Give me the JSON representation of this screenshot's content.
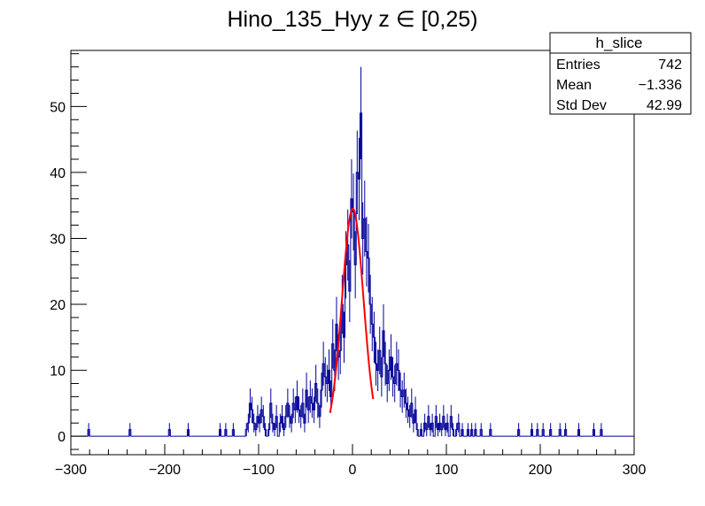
{
  "chart_data": {
    "type": "histogram",
    "title": "Hino_135_Hyy z  ∈ [0,25)",
    "xlabel": "",
    "ylabel": "",
    "xlim": [
      -300,
      300
    ],
    "ylim": [
      -2.8,
      58.5
    ],
    "x_ticks": [
      -300,
      -200,
      -100,
      0,
      100,
      200,
      300
    ],
    "x_tick_labels": [
      "−300",
      "−200",
      "−100",
      "0",
      "100",
      "200",
      "300"
    ],
    "y_ticks": [
      0,
      10,
      20,
      30,
      40,
      50
    ],
    "y_tick_labels": [
      "0",
      "10",
      "20",
      "30",
      "40",
      "50"
    ],
    "bin_width": 2,
    "bin_start": -300,
    "bins_nonzero": [
      [
        -282,
        1
      ],
      [
        -238,
        1
      ],
      [
        -196,
        1
      ],
      [
        -176,
        1
      ],
      [
        -142,
        1
      ],
      [
        -136,
        1
      ],
      [
        -128,
        1
      ],
      [
        -114,
        1
      ],
      [
        -112,
        2
      ],
      [
        -110,
        5
      ],
      [
        -108,
        4
      ],
      [
        -106,
        2
      ],
      [
        -104,
        1
      ],
      [
        -102,
        3
      ],
      [
        -100,
        2
      ],
      [
        -98,
        4
      ],
      [
        -96,
        3
      ],
      [
        -94,
        1
      ],
      [
        -92,
        0
      ],
      [
        -90,
        1
      ],
      [
        -88,
        5
      ],
      [
        -86,
        2
      ],
      [
        -84,
        1
      ],
      [
        -82,
        3
      ],
      [
        -80,
        0
      ],
      [
        -78,
        2
      ],
      [
        -76,
        3
      ],
      [
        -74,
        1
      ],
      [
        -72,
        3
      ],
      [
        -70,
        5
      ],
      [
        -68,
        3
      ],
      [
        -66,
        2
      ],
      [
        -64,
        5
      ],
      [
        -62,
        4
      ],
      [
        -60,
        6
      ],
      [
        -58,
        4
      ],
      [
        -56,
        3
      ],
      [
        -54,
        5
      ],
      [
        -52,
        2
      ],
      [
        -50,
        7
      ],
      [
        -48,
        4
      ],
      [
        -46,
        6
      ],
      [
        -44,
        5
      ],
      [
        -42,
        4
      ],
      [
        -40,
        8
      ],
      [
        -38,
        5
      ],
      [
        -36,
        3
      ],
      [
        -34,
        7
      ],
      [
        -32,
        11
      ],
      [
        -30,
        9
      ],
      [
        -28,
        8
      ],
      [
        -26,
        10
      ],
      [
        -24,
        6
      ],
      [
        -22,
        14
      ],
      [
        -20,
        10
      ],
      [
        -18,
        17
      ],
      [
        -16,
        12
      ],
      [
        -14,
        13
      ],
      [
        -12,
        20
      ],
      [
        -10,
        15
      ],
      [
        -8,
        26
      ],
      [
        -6,
        29
      ],
      [
        -4,
        22
      ],
      [
        -2,
        36
      ],
      [
        0,
        34
      ],
      [
        2,
        26
      ],
      [
        4,
        40
      ],
      [
        6,
        39
      ],
      [
        8,
        49
      ],
      [
        10,
        30
      ],
      [
        12,
        33
      ],
      [
        14,
        28
      ],
      [
        16,
        27
      ],
      [
        18,
        20
      ],
      [
        20,
        17
      ],
      [
        22,
        15
      ],
      [
        24,
        11
      ],
      [
        26,
        10
      ],
      [
        28,
        13
      ],
      [
        30,
        9
      ],
      [
        32,
        16
      ],
      [
        34,
        11
      ],
      [
        36,
        8
      ],
      [
        38,
        10
      ],
      [
        40,
        12
      ],
      [
        42,
        9
      ],
      [
        44,
        8
      ],
      [
        46,
        11
      ],
      [
        48,
        10
      ],
      [
        50,
        7
      ],
      [
        52,
        6
      ],
      [
        54,
        7
      ],
      [
        56,
        5
      ],
      [
        58,
        4
      ],
      [
        60,
        3
      ],
      [
        62,
        5
      ],
      [
        64,
        2
      ],
      [
        66,
        4
      ],
      [
        68,
        1
      ],
      [
        70,
        0
      ],
      [
        72,
        1
      ],
      [
        74,
        0
      ],
      [
        76,
        2
      ],
      [
        78,
        1
      ],
      [
        80,
        3
      ],
      [
        82,
        1
      ],
      [
        84,
        2
      ],
      [
        86,
        0
      ],
      [
        88,
        3
      ],
      [
        90,
        1
      ],
      [
        92,
        2
      ],
      [
        94,
        1
      ],
      [
        96,
        3
      ],
      [
        98,
        1
      ],
      [
        100,
        2
      ],
      [
        102,
        0
      ],
      [
        104,
        3
      ],
      [
        106,
        1
      ],
      [
        108,
        0
      ],
      [
        110,
        1
      ],
      [
        112,
        2
      ],
      [
        114,
        0
      ],
      [
        116,
        1
      ],
      [
        118,
        0
      ],
      [
        122,
        1
      ],
      [
        126,
        1
      ],
      [
        130,
        1
      ],
      [
        136,
        1
      ],
      [
        146,
        1
      ],
      [
        176,
        1
      ],
      [
        190,
        1
      ],
      [
        196,
        1
      ],
      [
        202,
        1
      ],
      [
        210,
        1
      ],
      [
        220,
        1
      ],
      [
        226,
        1
      ],
      [
        240,
        1
      ],
      [
        256,
        1
      ],
      [
        264,
        1
      ]
    ],
    "fit": {
      "type": "gaussian",
      "color": "#ff0000",
      "constant": 34.5,
      "mean": 0.3,
      "sigma": 11.4,
      "range": [
        -24,
        22
      ]
    },
    "line_color": "#000099",
    "grid": false,
    "stats_box": {
      "title": "h_slice",
      "rows": [
        {
          "name": "Entries",
          "value": "742"
        },
        {
          "name": "Mean",
          "value": "−1.336"
        },
        {
          "name": "Std Dev",
          "value": "42.99"
        }
      ],
      "placement": "top-right"
    }
  }
}
